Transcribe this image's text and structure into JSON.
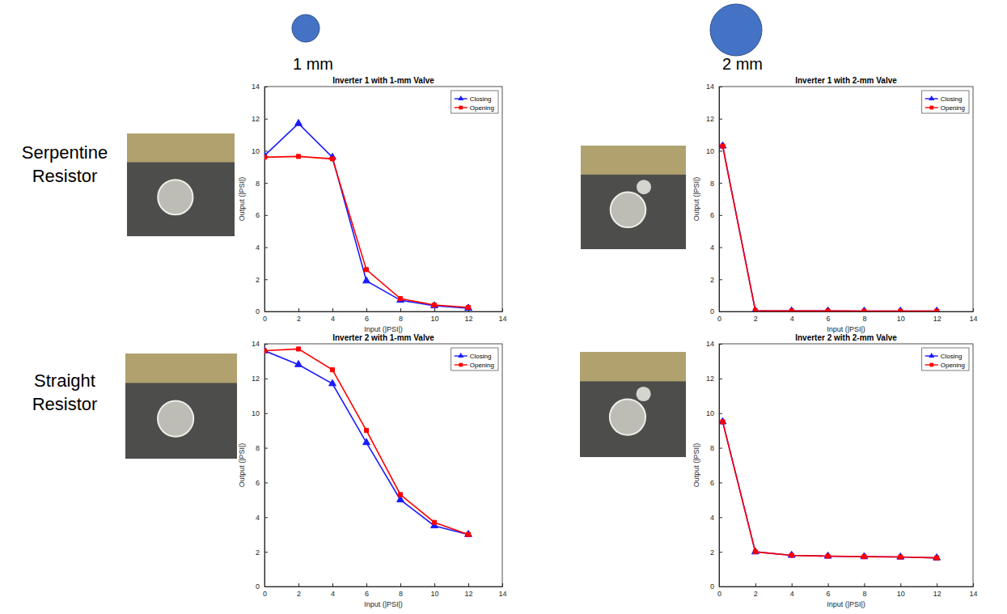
{
  "figure": {
    "column_labels": [
      "1 mm",
      "2 mm"
    ],
    "row_labels": [
      "Serpentine Resistor",
      "Straight Resistor"
    ]
  },
  "chart_data": [
    {
      "type": "line",
      "title": "Inverter 1 with 1-mm Valve",
      "x_label": "Input (|PSI|)",
      "y_label": "Output (|PSI|)",
      "x": [
        0,
        2,
        4,
        6,
        8,
        10,
        12
      ],
      "series": [
        {
          "name": "Closing",
          "color": "#1a1aff",
          "marker": "triangle",
          "values": [
            9.7,
            11.7,
            9.6,
            1.9,
            0.7,
            0.35,
            0.2
          ]
        },
        {
          "name": "Opening",
          "color": "#ff0000",
          "marker": "square",
          "values": [
            9.6,
            9.65,
            9.5,
            2.6,
            0.8,
            0.4,
            0.25
          ]
        }
      ],
      "xlim": [
        0,
        14
      ],
      "ylim": [
        0,
        14
      ],
      "xticks": [
        0,
        2,
        4,
        6,
        8,
        10,
        12,
        14
      ],
      "yticks": [
        0,
        2,
        4,
        6,
        8,
        10,
        12,
        14
      ],
      "legend": "upper right"
    },
    {
      "type": "line",
      "title": "Inverter 1 with 2-mm Valve",
      "x_label": "Input (|PSI|)",
      "y_label": "Output (|PSI|)",
      "x": [
        0.2,
        2,
        4,
        6,
        8,
        10,
        12
      ],
      "series": [
        {
          "name": "Closing",
          "color": "#1a1aff",
          "marker": "triangle",
          "values": [
            10.3,
            0.05,
            0.03,
            0.03,
            0.02,
            0.02,
            0.02
          ]
        },
        {
          "name": "Opening",
          "color": "#ff0000",
          "marker": "square",
          "values": [
            10.3,
            0.05,
            0.03,
            0.03,
            0.02,
            0.02,
            0.02
          ]
        }
      ],
      "xlim": [
        0,
        14
      ],
      "ylim": [
        0,
        14
      ],
      "xticks": [
        0,
        2,
        4,
        6,
        8,
        10,
        12,
        14
      ],
      "yticks": [
        0,
        2,
        4,
        6,
        8,
        10,
        12,
        14
      ],
      "legend": "upper right"
    },
    {
      "type": "line",
      "title": "Inverter 2 with 1-mm Valve",
      "x_label": "Input (|PSI|)",
      "y_label": "Output (|PSI|)",
      "x": [
        0,
        2,
        4,
        6,
        8,
        10,
        12
      ],
      "series": [
        {
          "name": "Closing",
          "color": "#1a1aff",
          "marker": "triangle",
          "values": [
            13.6,
            12.8,
            11.7,
            8.3,
            5.0,
            3.5,
            3.0
          ]
        },
        {
          "name": "Opening",
          "color": "#ff0000",
          "marker": "square",
          "values": [
            13.6,
            13.7,
            12.5,
            9.0,
            5.3,
            3.7,
            3.0
          ]
        }
      ],
      "xlim": [
        0,
        14
      ],
      "ylim": [
        0,
        14
      ],
      "xticks": [
        0,
        2,
        4,
        6,
        8,
        10,
        12,
        14
      ],
      "yticks": [
        0,
        2,
        4,
        6,
        8,
        10,
        12,
        14
      ],
      "legend": "upper right"
    },
    {
      "type": "line",
      "title": "Inverter 2 with 2-mm Valve",
      "x_label": "Input (|PSI|)",
      "y_label": "Output (|PSI|)",
      "x": [
        0.2,
        2,
        4,
        6,
        8,
        10,
        12
      ],
      "series": [
        {
          "name": "Closing",
          "color": "#1a1aff",
          "marker": "triangle",
          "values": [
            9.5,
            2.0,
            1.8,
            1.75,
            1.72,
            1.7,
            1.65
          ]
        },
        {
          "name": "Opening",
          "color": "#ff0000",
          "marker": "square",
          "values": [
            9.5,
            2.0,
            1.8,
            1.75,
            1.72,
            1.7,
            1.65
          ]
        }
      ],
      "xlim": [
        0,
        14
      ],
      "ylim": [
        0,
        14
      ],
      "xticks": [
        0,
        2,
        4,
        6,
        8,
        10,
        12,
        14
      ],
      "yticks": [
        0,
        2,
        4,
        6,
        8,
        10,
        12,
        14
      ],
      "legend": "upper right"
    }
  ]
}
